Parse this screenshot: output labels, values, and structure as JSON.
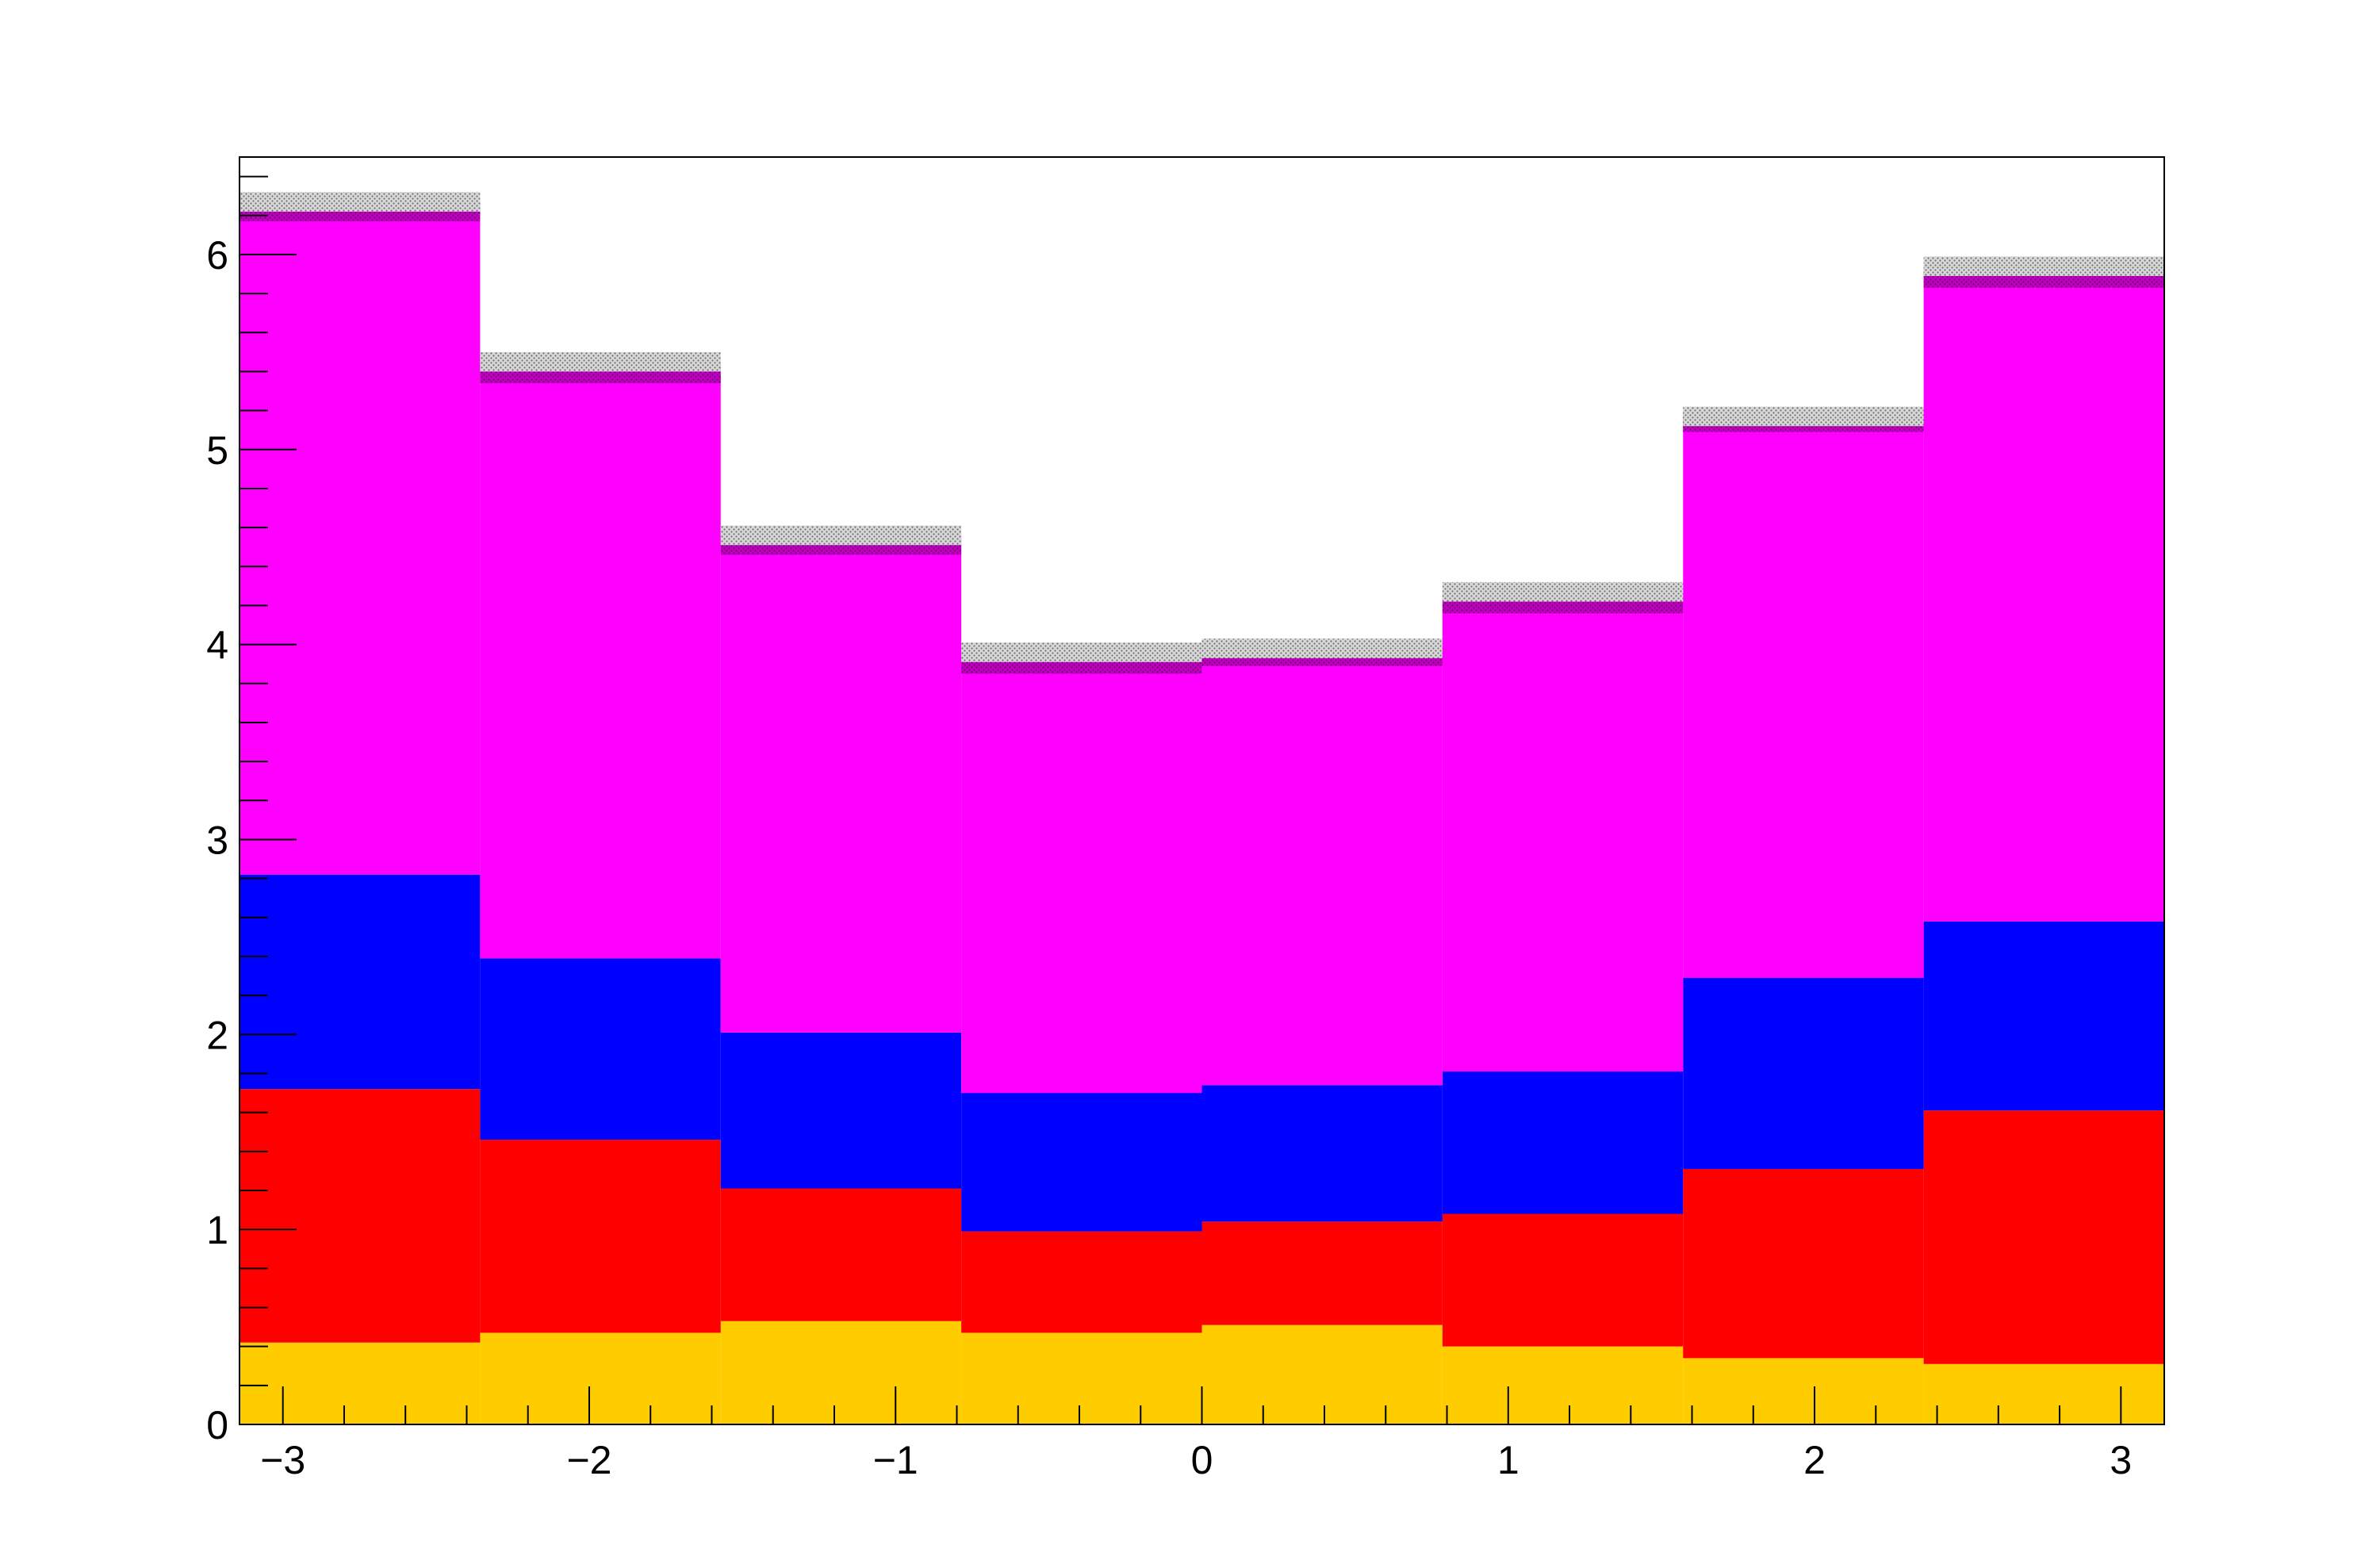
{
  "chart_data": {
    "type": "area",
    "subtype": "stacked-step-histogram",
    "title": "",
    "xlabel": "",
    "ylabel": "",
    "xlim": [
      -3.1416,
      3.1416
    ],
    "ylim": [
      0,
      6.5
    ],
    "x_ticks": [
      {
        "value": -3,
        "label": "−3"
      },
      {
        "value": -2,
        "label": "−2"
      },
      {
        "value": -1,
        "label": "−1"
      },
      {
        "value": 0,
        "label": "0"
      },
      {
        "value": 1,
        "label": "1"
      },
      {
        "value": 2,
        "label": "2"
      },
      {
        "value": 3,
        "label": "3"
      }
    ],
    "y_ticks": [
      {
        "value": 0,
        "label": "0"
      },
      {
        "value": 1,
        "label": "1"
      },
      {
        "value": 2,
        "label": "2"
      },
      {
        "value": 3,
        "label": "3"
      },
      {
        "value": 4,
        "label": "4"
      },
      {
        "value": 5,
        "label": "5"
      },
      {
        "value": 6,
        "label": "6"
      }
    ],
    "bin_edges": [
      -3.1416,
      -2.3562,
      -1.5708,
      -0.7854,
      0.0,
      0.7854,
      1.5708,
      2.3562,
      3.1416
    ],
    "series": [
      {
        "color": "#ffcc00",
        "values": [
          0.42,
          0.47,
          0.53,
          0.47,
          0.51,
          0.4,
          0.34,
          0.31
        ]
      },
      {
        "color": "#ff0000",
        "values": [
          1.3,
          0.99,
          0.68,
          0.52,
          0.53,
          0.68,
          0.97,
          1.3
        ]
      },
      {
        "color": "#0000ff",
        "values": [
          1.1,
          0.93,
          0.8,
          0.71,
          0.7,
          0.73,
          0.98,
          0.97
        ]
      },
      {
        "color": "#ff00ff",
        "values": [
          3.4,
          3.0,
          2.5,
          2.2,
          2.2,
          2.4,
          2.85,
          3.3
        ]
      }
    ],
    "uncertainty_band": {
      "color": "#b400b4",
      "half_width": [
        0.05,
        0.05,
        0.05,
        0.05,
        0.05,
        0.05,
        0.05,
        0.05
      ]
    },
    "grey_band": {
      "color": "#a8a8a8",
      "top": [
        6.32,
        5.5,
        4.61,
        4.01,
        4.03,
        4.32,
        5.22,
        5.99
      ],
      "bottom": [
        6.22,
        5.4,
        4.51,
        3.91,
        3.93,
        4.22,
        5.12,
        5.89
      ]
    },
    "grid": false,
    "legend": "none"
  }
}
